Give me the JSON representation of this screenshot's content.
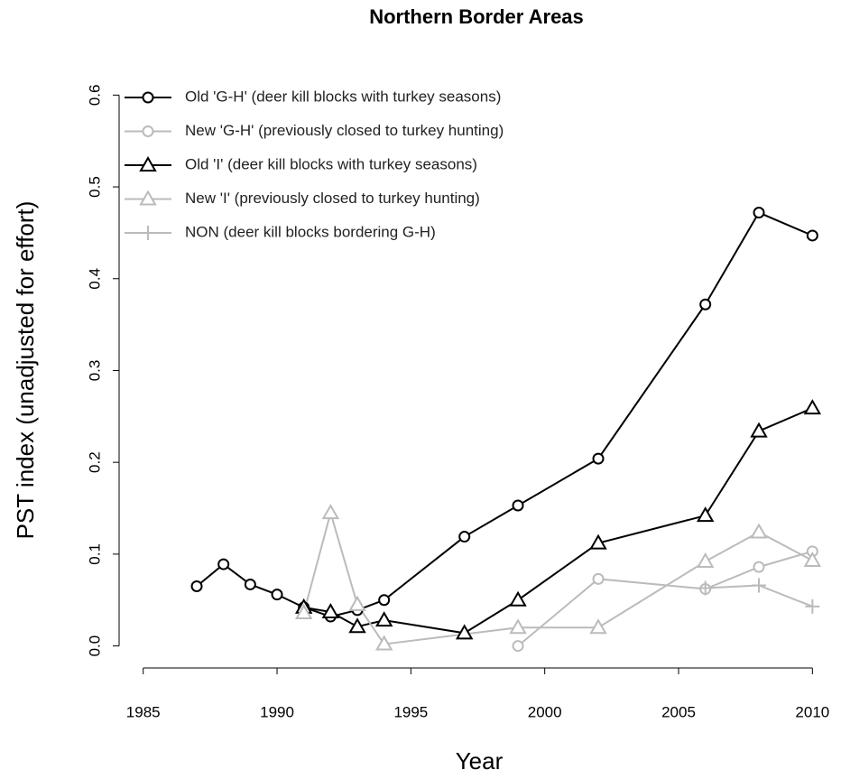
{
  "chart_data": {
    "type": "line",
    "title": "Northern Border Areas",
    "x_label": "Year",
    "y_label": "PST index (unadjusted for effort)",
    "xlim": [
      1984.1,
      2011
    ],
    "xticks": [
      1985,
      1990,
      1995,
      2000,
      2005,
      2010
    ],
    "ylim": [
      -0.024,
      0.62
    ],
    "yticks": [
      {
        "value": 0,
        "label": "0.0"
      },
      0.1,
      0.2,
      0.3,
      0.4,
      0.5,
      0.6
    ],
    "legend_position": "top-left",
    "series": [
      {
        "name": "Old 'G-H' (deer kill blocks with turkey seasons)",
        "color": "#000000",
        "marker": "circle",
        "x": [
          1987,
          1988,
          1989,
          1990,
          1991,
          1992,
          1993,
          1994,
          1997,
          1999,
          2002,
          2006,
          2008,
          2010
        ],
        "values": [
          0.065,
          0.089,
          0.067,
          0.056,
          0.042,
          0.032,
          0.039,
          0.05,
          0.119,
          0.153,
          0.204,
          0.372,
          0.472,
          0.447
        ]
      },
      {
        "name": "New 'G-H' (previously closed to turkey hunting)",
        "color": "#bbbbbb",
        "marker": "circle",
        "x": [
          1999,
          2002,
          2006,
          2008,
          2010
        ],
        "values": [
          0.0,
          0.073,
          0.062,
          0.086,
          0.103
        ]
      },
      {
        "name": "Old 'I' (deer kill blocks with turkey seasons)",
        "color": "#000000",
        "marker": "triangle",
        "x": [
          1991,
          1992,
          1993,
          1994,
          1997,
          1999,
          2002,
          2006,
          2008,
          2010
        ],
        "values": [
          0.042,
          0.037,
          0.021,
          0.028,
          0.014,
          0.05,
          0.112,
          0.142,
          0.234,
          0.259
        ]
      },
      {
        "name": "New 'I' (previously closed to turkey hunting)",
        "color": "#bbbbbb",
        "marker": "triangle",
        "x": [
          1991,
          1992,
          1993,
          1994,
          1999,
          2002,
          2006,
          2008,
          2010
        ],
        "values": [
          0.036,
          0.145,
          0.045,
          0.002,
          0.02,
          0.02,
          0.092,
          0.124,
          0.093
        ]
      },
      {
        "name": "NON (deer kill blocks bordering G-H)",
        "color": "#bbbbbb",
        "marker": "plus",
        "x": [
          2006,
          2008,
          2010
        ],
        "values": [
          0.063,
          0.066,
          0.043
        ]
      }
    ]
  }
}
